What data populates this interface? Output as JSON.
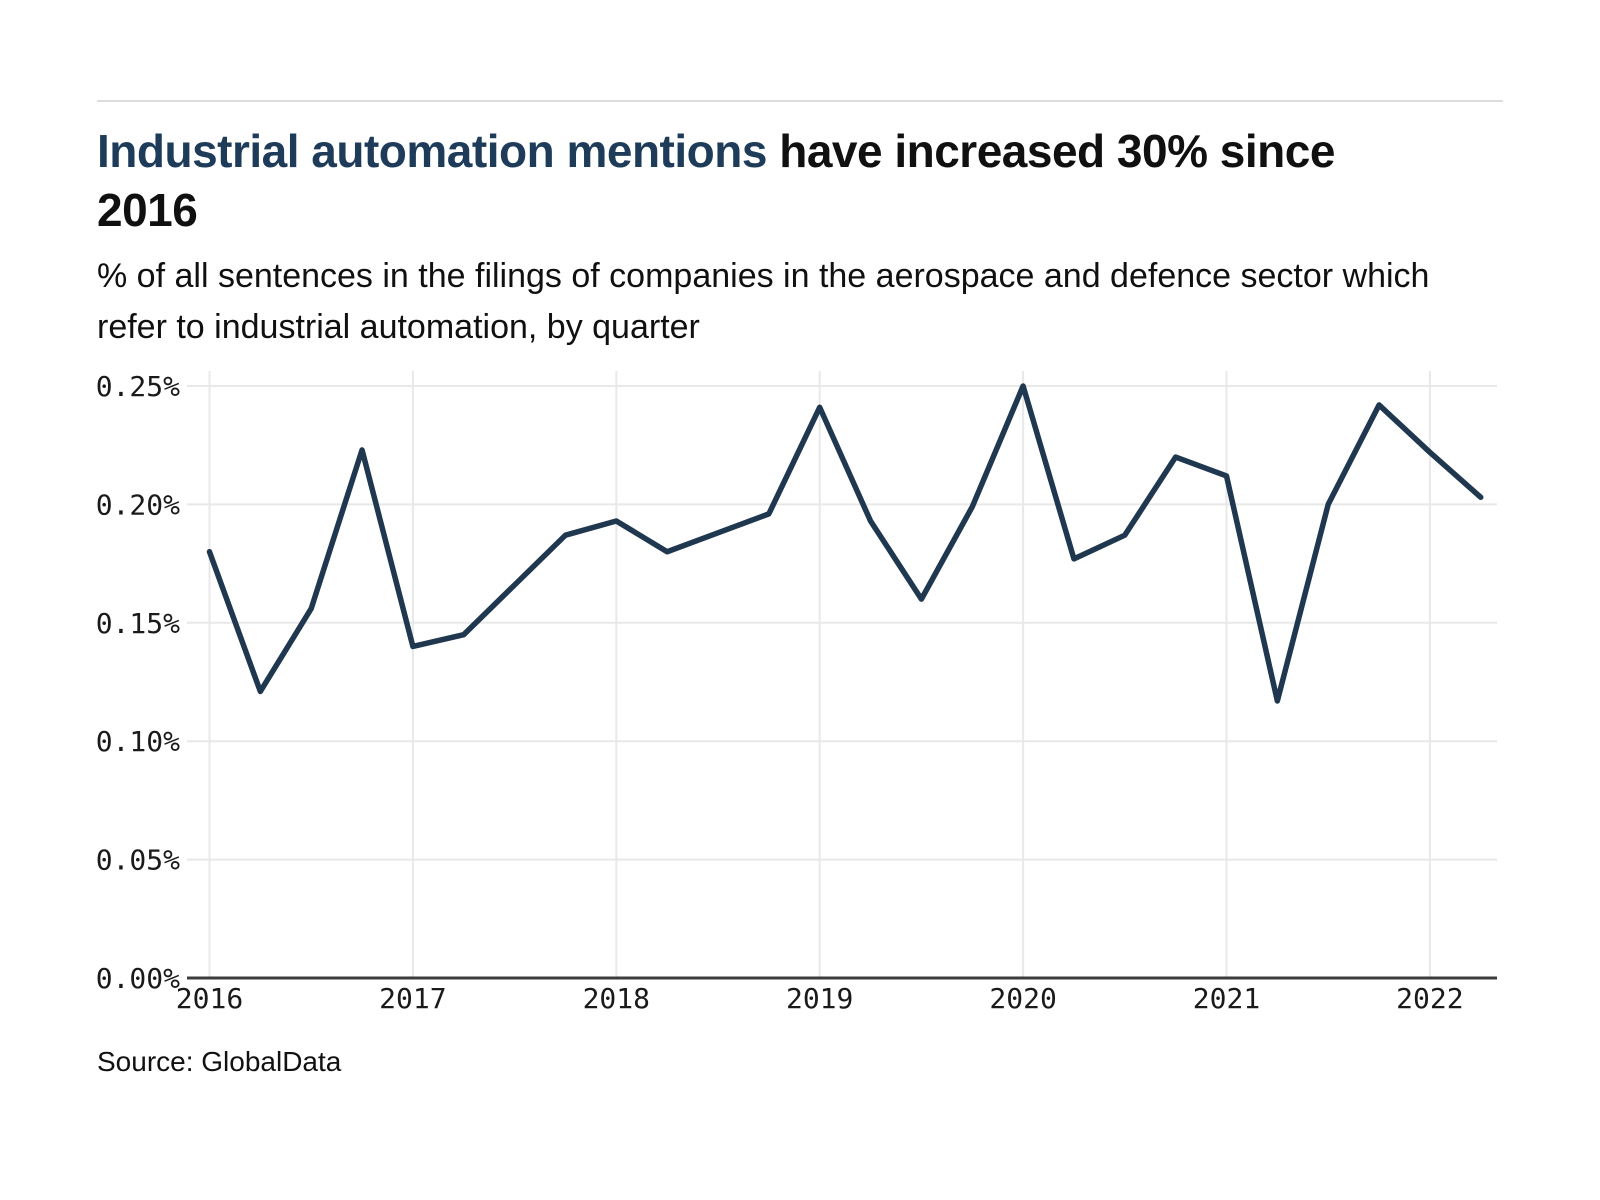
{
  "header": {
    "title_highlight": "Industrial automation mentions",
    "title_rest": " have increased 30% since 2016",
    "subtitle": "% of all sentences in the filings of companies in the aerospace and defence sector which refer to industrial automation, by quarter"
  },
  "footer": {
    "source": "Source: GlobalData"
  },
  "colors": {
    "line": "#1f3850",
    "title_highlight": "#1e3c5a",
    "text": "#101010",
    "gridline": "#e8e8e8",
    "axis_line": "#3c3c3c",
    "tick_text": "#1a1a1a"
  },
  "chart_data": {
    "type": "line",
    "title": "Industrial automation mentions have increased 30% since 2016",
    "subtitle": "% of all sentences in the filings of companies in the aerospace and defence sector which refer to industrial automation, by quarter",
    "unit": "%",
    "grid": true,
    "legend": "none",
    "ylim": [
      0,
      0.25
    ],
    "ylabel": "",
    "xlabel": "",
    "x": [
      "2016 Q1",
      "2016 Q2",
      "2016 Q3",
      "2016 Q4",
      "2017 Q1",
      "2017 Q2",
      "2017 Q3",
      "2017 Q4",
      "2018 Q1",
      "2018 Q2",
      "2018 Q3",
      "2018 Q4",
      "2019 Q1",
      "2019 Q2",
      "2019 Q3",
      "2019 Q4",
      "2020 Q1",
      "2020 Q2",
      "2020 Q3",
      "2020 Q4",
      "2021 Q1",
      "2021 Q2",
      "2021 Q3",
      "2021 Q4",
      "2022 Q1",
      "2022 Q2"
    ],
    "series": [
      {
        "name": "Share of sentences referring to industrial automation",
        "values": [
          0.18,
          0.121,
          0.156,
          0.223,
          0.14,
          0.145,
          0.166,
          0.187,
          0.193,
          0.18,
          0.188,
          0.196,
          0.241,
          0.193,
          0.16,
          0.199,
          0.25,
          0.177,
          0.187,
          0.22,
          0.212,
          0.117,
          0.2,
          0.242,
          0.222,
          0.203
        ]
      }
    ],
    "y_ticks": [
      {
        "label": "0.00%",
        "value": 0.0
      },
      {
        "label": "0.05%",
        "value": 0.05
      },
      {
        "label": "0.10%",
        "value": 0.1
      },
      {
        "label": "0.15%",
        "value": 0.15
      },
      {
        "label": "0.20%",
        "value": 0.2
      },
      {
        "label": "0.25%",
        "value": 0.25
      }
    ],
    "x_ticks": [
      {
        "label": "2016",
        "index": 0
      },
      {
        "label": "2017",
        "index": 4
      },
      {
        "label": "2018",
        "index": 8
      },
      {
        "label": "2019",
        "index": 12
      },
      {
        "label": "2020",
        "index": 16
      },
      {
        "label": "2021",
        "index": 20
      },
      {
        "label": "2022",
        "index": 24
      }
    ]
  }
}
